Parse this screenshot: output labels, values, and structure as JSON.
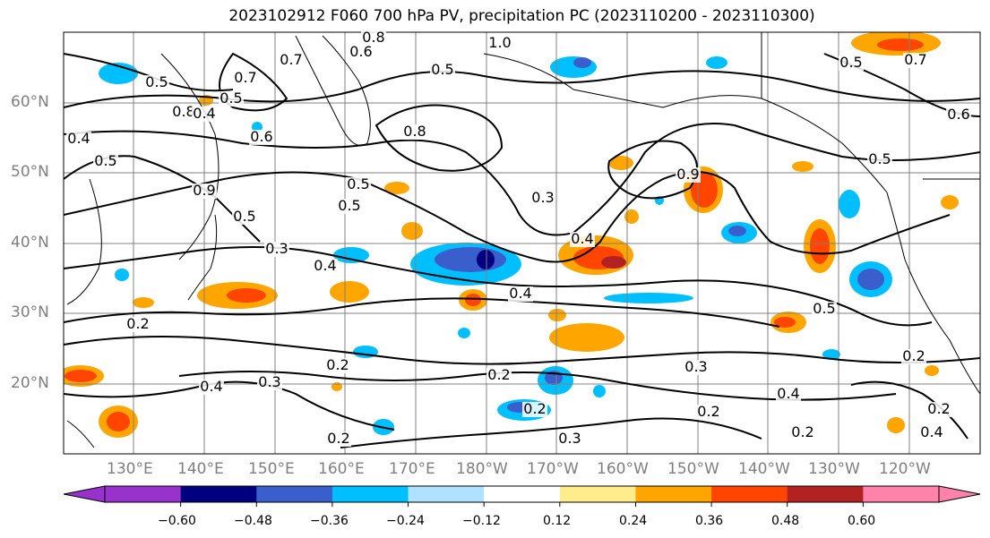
{
  "title": "2023102912 F060 700 hPa PV, precipitation PC (2023110200 - 2023110300)",
  "map": {
    "lat_ticks": [
      "60°N",
      "50°N",
      "40°N",
      "30°N",
      "20°N"
    ],
    "lon_ticks": [
      "130°E",
      "140°E",
      "150°E",
      "160°E",
      "170°E",
      "180°W",
      "170°W",
      "160°W",
      "150°W",
      "140°W",
      "130°W",
      "120°W"
    ],
    "contour_labels": [
      "0.4",
      "0.5",
      "0.7",
      "0.6",
      "0.8",
      "1.0",
      "0.7",
      "0.8",
      "0.5",
      "0.4",
      "0.5",
      "0.6",
      "0.5",
      "0.8",
      "0.9",
      "0.3",
      "0.5",
      "0.3",
      "0.5",
      "0.5",
      "0.4",
      "0.4",
      "0.4",
      "0.2",
      "0.2",
      "0.3",
      "0.2",
      "0.2",
      "0.4",
      "0.3",
      "0.2",
      "0.3",
      "0.2",
      "0.4",
      "0.2",
      "0.5",
      "0.2",
      "0.2",
      "0.4",
      "0.5",
      "0.5",
      "0.7",
      "0.6",
      "0.9"
    ]
  },
  "colorbar": {
    "ticks": [
      "−0.60",
      "−0.48",
      "−0.36",
      "−0.24",
      "−0.12",
      "0.12",
      "0.24",
      "0.36",
      "0.48",
      "0.60"
    ],
    "colors": [
      "#9932cc",
      "#000080",
      "#3a5fcd",
      "#00bfff",
      "#b0e2ff",
      "#ffffff",
      "#ffec8b",
      "#ffa500",
      "#ff4500",
      "#b22222",
      "#ff82ab",
      "#ff82ab"
    ]
  },
  "colors": {
    "neg_strong": "#000080",
    "neg_mid": "#3a5fcd",
    "neg": "#00bfff",
    "neg_light": "#b0e2ff",
    "pos_light": "#ffec8b",
    "pos": "#ffa500",
    "pos_mid": "#ff4500",
    "pos_strong": "#b22222",
    "grid": "#808080",
    "contour": "#000000",
    "axis_label": "#7f7f7f"
  }
}
